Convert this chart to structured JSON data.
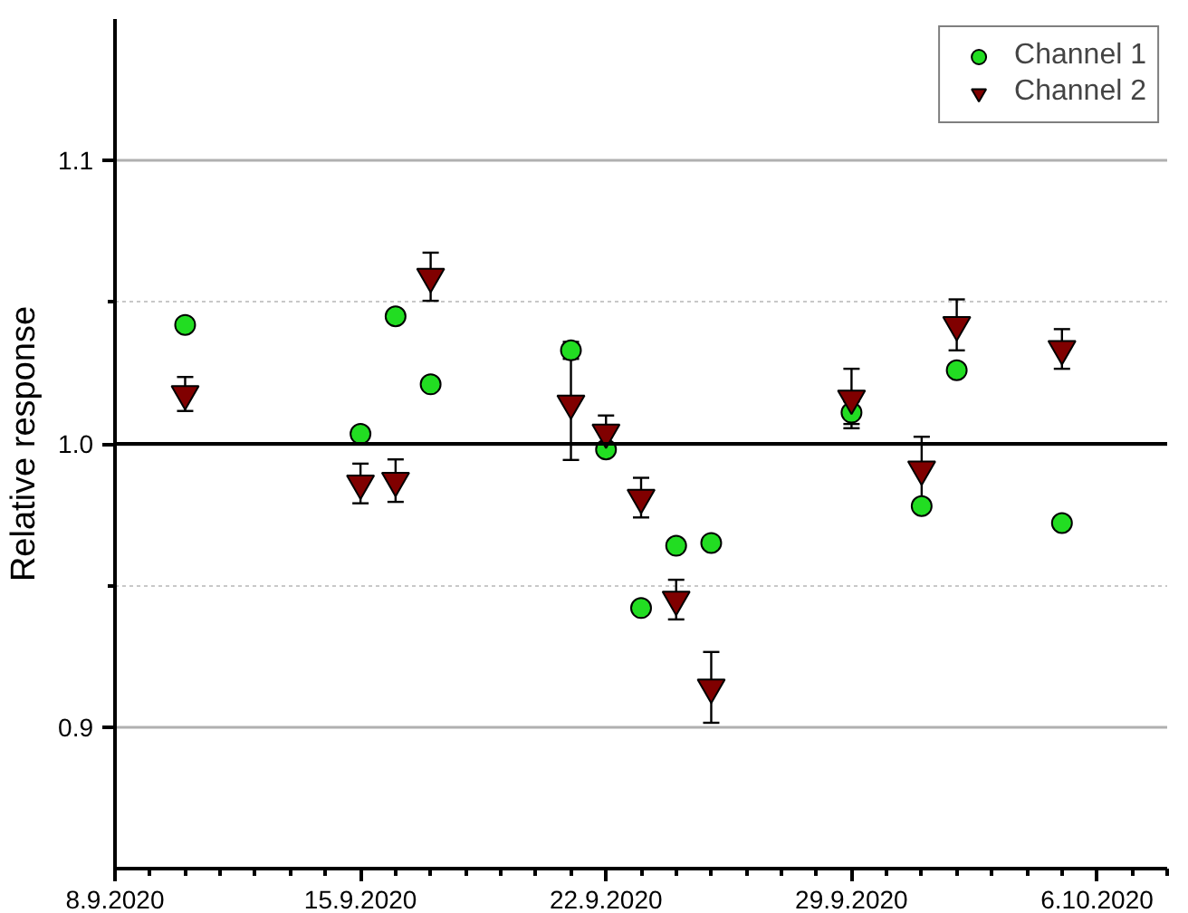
{
  "chart_data": {
    "type": "scatter",
    "ylabel": "Relative response",
    "x": [
      "2020-09-10",
      "2020-09-15",
      "2020-09-16",
      "2020-09-17",
      "2020-09-21",
      "2020-09-22",
      "2020-09-23",
      "2020-09-24",
      "2020-09-25",
      "2020-09-29",
      "2020-10-01",
      "2020-10-02",
      "2020-10-05"
    ],
    "series": [
      {
        "name": "Channel 1",
        "color": "#22dd22",
        "marker": "circle",
        "values": [
          1.042,
          1.0035,
          1.045,
          1.021,
          1.033,
          0.998,
          0.942,
          0.964,
          0.965,
          1.011,
          0.978,
          1.026,
          0.972
        ],
        "errors": [
          0.002,
          0.002,
          0.002,
          0.002,
          0.003,
          0.002,
          0.002,
          0.002,
          0.002,
          0.004,
          0.002,
          0.002,
          0.002
        ]
      },
      {
        "name": "Channel 2",
        "color": "#800000",
        "marker": "triangle",
        "values": [
          1.0176,
          0.986,
          0.987,
          1.059,
          1.0143,
          1.004,
          0.981,
          0.945,
          0.914,
          1.016,
          0.991,
          1.042,
          1.0335
        ],
        "errors": [
          0.006,
          0.007,
          0.0075,
          0.0085,
          0.02,
          0.006,
          0.007,
          0.007,
          0.0125,
          0.0105,
          0.0115,
          0.009,
          0.007
        ]
      }
    ],
    "xlim": [
      "2020-09-08",
      "2020-10-08"
    ],
    "xticks": [
      {
        "value": "2020-09-08",
        "label": "8.9.2020"
      },
      {
        "value": "2020-09-15",
        "label": "15.9.2020"
      },
      {
        "value": "2020-09-22",
        "label": "22.9.2020"
      },
      {
        "value": "2020-09-29",
        "label": "29.9.2020"
      },
      {
        "value": "2020-10-06",
        "label": "6.10.2020"
      }
    ],
    "ylim": [
      0.85,
      1.15
    ],
    "yticks": [
      0.9,
      {
        "value": 1.0,
        "label": "1.0"
      },
      1.1,
      {
        "value": 0.95,
        "label": null
      },
      {
        "value": 1.05,
        "label": null
      }
    ],
    "ref_lines": [
      {
        "axis": "y",
        "value": 1.0,
        "label": null,
        "color": "#000000"
      }
    ],
    "grid": "y",
    "legend": "top right"
  }
}
